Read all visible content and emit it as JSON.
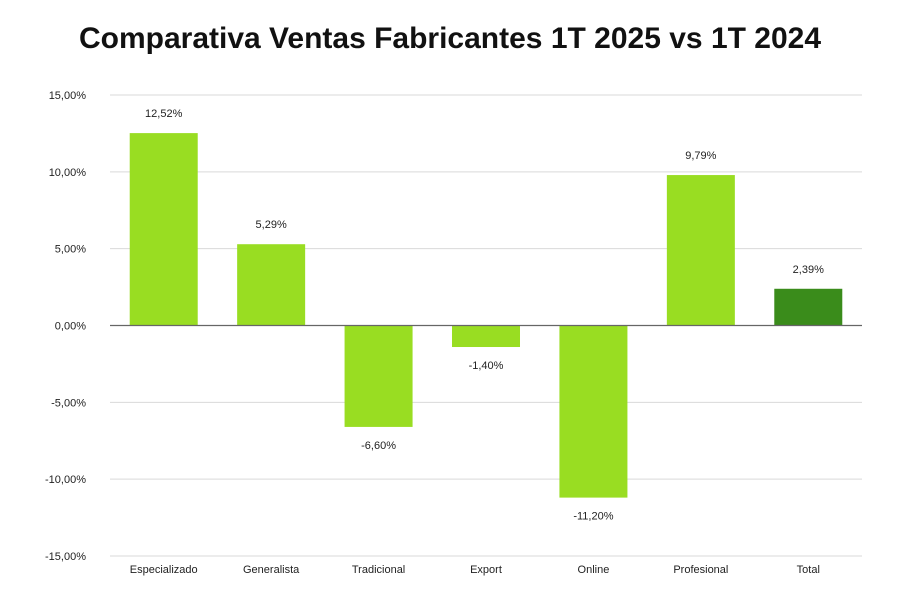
{
  "chart_data": {
    "type": "bar",
    "title": "Comparativa Ventas Fabricantes 1T 2025 vs 1T 2024",
    "xlabel": "",
    "ylabel": "",
    "categories": [
      "Especializado",
      "Generalista",
      "Tradicional",
      "Export",
      "Online",
      "Profesional",
      "Total"
    ],
    "values": [
      12.52,
      5.29,
      -6.6,
      -1.4,
      -11.2,
      9.79,
      2.39
    ],
    "value_labels": [
      "12,52%",
      "5,29%",
      "-6,60%",
      "-1,40%",
      "-11,20%",
      "9,79%",
      "2,39%"
    ],
    "ylim": [
      -15,
      15
    ],
    "yticks": [
      15,
      10,
      5,
      0,
      -5,
      -10,
      -15
    ],
    "ytick_labels": [
      "15,00%",
      "10,00%",
      "5,00%",
      "0,00%",
      "-5,00%",
      "-10,00%",
      "-15,00%"
    ],
    "grid": true,
    "legend": "none",
    "colors": {
      "bar": "#99DD22",
      "highlight": "#3A8C1B",
      "gridline": "#D9D9D9",
      "zero_line": "#666666"
    },
    "highlight_category": "Total"
  }
}
